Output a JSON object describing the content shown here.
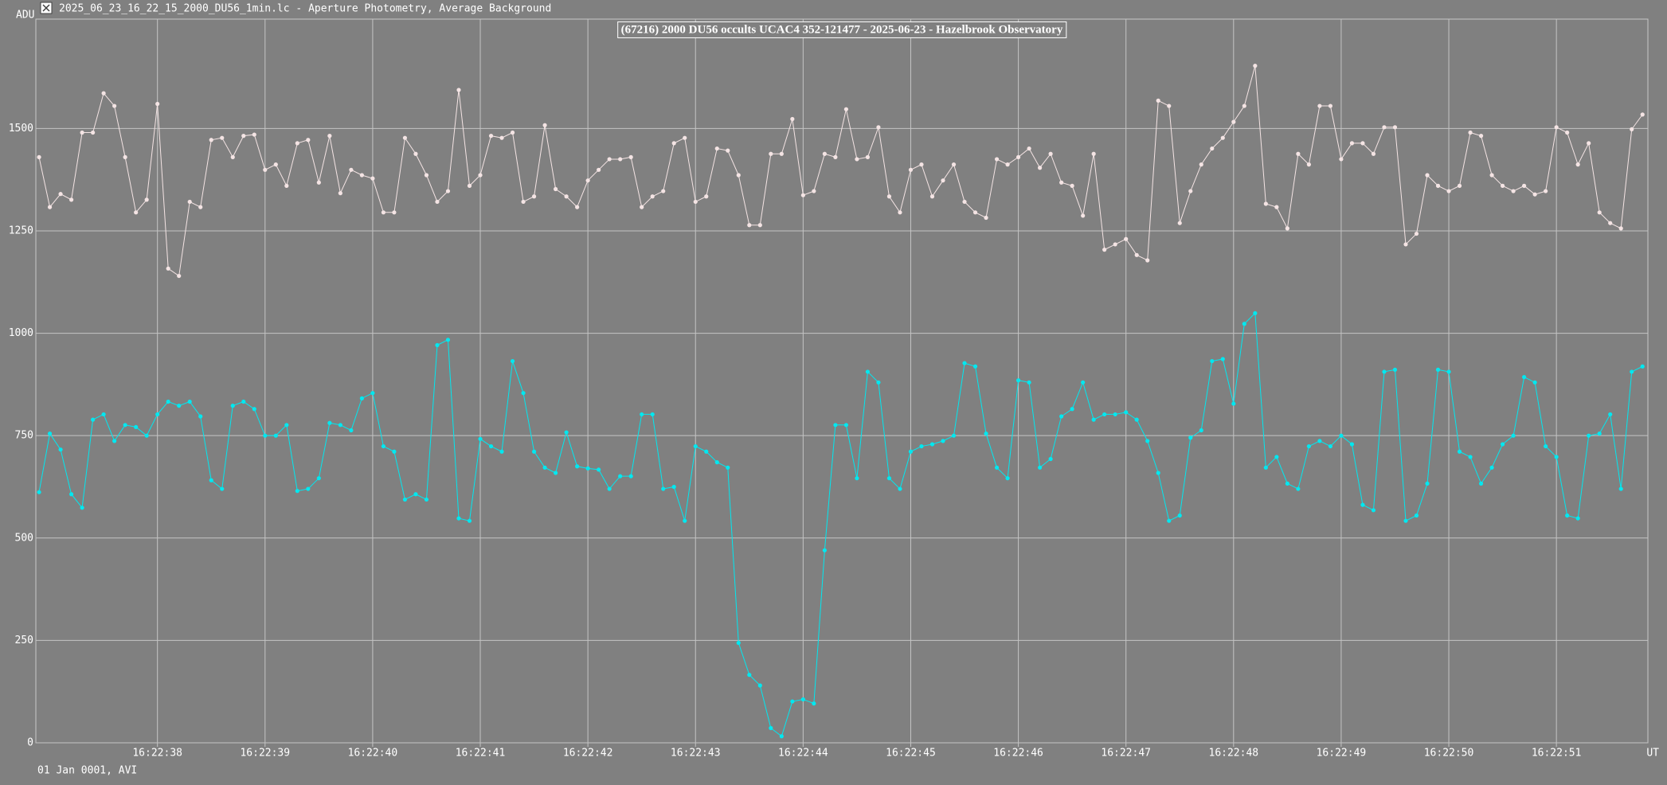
{
  "window_title": "2025_06_23_16_22_15_2000_DU56_1min.lc - Aperture Photometry, Average Background",
  "chart_data": {
    "type": "line",
    "title": "(67216) 2000 DU56 occults UCAC4 352-121477 - 2025-06-23 - Hazelbrook Observatory",
    "y_label": "ADU",
    "x_label": "UT",
    "footer": "01 Jan 0001, AVI",
    "grid": true,
    "xlim": [
      36.87,
      51.85
    ],
    "ylim": [
      0,
      1767
    ],
    "yticks": [
      0,
      250,
      500,
      750,
      1000,
      1250,
      1500
    ],
    "xticks": [
      {
        "value": 38,
        "label": "16:22:38"
      },
      {
        "value": 39,
        "label": "16:22:39"
      },
      {
        "value": 40,
        "label": "16:22:40"
      },
      {
        "value": 41,
        "label": "16:22:41"
      },
      {
        "value": 42,
        "label": "16:22:42"
      },
      {
        "value": 43,
        "label": "16:22:43"
      },
      {
        "value": 44,
        "label": "16:22:44"
      },
      {
        "value": 45,
        "label": "16:22:45"
      },
      {
        "value": 46,
        "label": "16:22:46"
      },
      {
        "value": 47,
        "label": "16:22:47"
      },
      {
        "value": 48,
        "label": "16:22:48"
      },
      {
        "value": 49,
        "label": "16:22:49"
      },
      {
        "value": 50,
        "label": "16:22:50"
      },
      {
        "value": 51,
        "label": "16:22:51"
      }
    ],
    "x": [
      36.9,
      37,
      37.1,
      37.2,
      37.3,
      37.4,
      37.5,
      37.6,
      37.7,
      37.8,
      37.9,
      38,
      38.1,
      38.2,
      38.3,
      38.4,
      38.5,
      38.6,
      38.7,
      38.8,
      38.9,
      39,
      39.1,
      39.2,
      39.3,
      39.4,
      39.5,
      39.6,
      39.7,
      39.8,
      39.9,
      40,
      40.1,
      40.2,
      40.3,
      40.4,
      40.5,
      40.6,
      40.7,
      40.8,
      40.9,
      41,
      41.1,
      41.2,
      41.3,
      41.4,
      41.5,
      41.6,
      41.7,
      41.8,
      41.9,
      42,
      42.1,
      42.2,
      42.3,
      42.4,
      42.5,
      42.6,
      42.7,
      42.8,
      42.9,
      43,
      43.1,
      43.2,
      43.3,
      43.4,
      43.5,
      43.6,
      43.7,
      43.8,
      43.9,
      44,
      44.1,
      44.2,
      44.3,
      44.4,
      44.5,
      44.6,
      44.7,
      44.8,
      44.9,
      45,
      45.1,
      45.2,
      45.3,
      45.4,
      45.5,
      45.6,
      45.7,
      45.8,
      45.9,
      46,
      46.1,
      46.2,
      46.3,
      46.4,
      46.5,
      46.6,
      46.7,
      46.8,
      46.9,
      47,
      47.1,
      47.2,
      47.3,
      47.4,
      47.5,
      47.6,
      47.7,
      47.8,
      47.9,
      48,
      48.1,
      48.2,
      48.3,
      48.4,
      48.5,
      48.6,
      48.7,
      48.8,
      48.9,
      49,
      49.1,
      49.2,
      49.3,
      49.4,
      49.5,
      49.6,
      49.7,
      49.8,
      49.9,
      50,
      50.1,
      50.2,
      50.3,
      50.4,
      50.5,
      50.6,
      50.7,
      50.8,
      50.9,
      51,
      51.1,
      51.2,
      51.3,
      51.4,
      51.5,
      51.6,
      51.7,
      51.8
    ],
    "series": [
      {
        "color": "#f4e4e4",
        "values": [
          1430,
          1308,
          1340,
          1326,
          1490,
          1490,
          1586,
          1555,
          1430,
          1295,
          1326,
          1560,
          1158,
          1140,
          1321,
          1308,
          1472,
          1477,
          1430,
          1482,
          1485,
          1399,
          1412,
          1360,
          1464,
          1472,
          1368,
          1482,
          1342,
          1399,
          1386,
          1378,
          1295,
          1295,
          1477,
          1438,
          1386,
          1321,
          1347,
          1594,
          1360,
          1386,
          1482,
          1477,
          1490,
          1321,
          1334,
          1508,
          1352,
          1334,
          1308,
          1373,
          1399,
          1425,
          1425,
          1430,
          1308,
          1334,
          1347,
          1464,
          1477,
          1321,
          1334,
          1451,
          1446,
          1386,
          1264,
          1264,
          1438,
          1438,
          1523,
          1337,
          1347,
          1438,
          1430,
          1547,
          1425,
          1430,
          1503,
          1334,
          1295,
          1399,
          1412,
          1334,
          1373,
          1412,
          1321,
          1295,
          1282,
          1425,
          1412,
          1430,
          1451,
          1404,
          1438,
          1368,
          1360,
          1287,
          1438,
          1204,
          1217,
          1230,
          1191,
          1178,
          1568,
          1555,
          1269,
          1347,
          1412,
          1451,
          1477,
          1516,
          1555,
          1653,
          1316,
          1308,
          1256,
          1438,
          1412,
          1555,
          1555,
          1425,
          1464,
          1464,
          1438,
          1503,
          1503,
          1217,
          1243,
          1386,
          1360,
          1347,
          1360,
          1490,
          1482,
          1386,
          1360,
          1347,
          1360,
          1339,
          1347,
          1503,
          1490,
          1412,
          1464,
          1295,
          1269,
          1256,
          1498,
          1534
        ]
      },
      {
        "color": "#00e8f0",
        "values": [
          612,
          755,
          716,
          607,
          574,
          789,
          802,
          737,
          776,
          771,
          750,
          802,
          833,
          823,
          833,
          797,
          641,
          620,
          823,
          833,
          815,
          750,
          750,
          776,
          615,
          620,
          646,
          781,
          776,
          763,
          841,
          854,
          724,
          711,
          594,
          607,
          594,
          971,
          984,
          548,
          542,
          742,
          724,
          711,
          932,
          854,
          711,
          672,
          659,
          758,
          675,
          670,
          667,
          620,
          651,
          651,
          802,
          802,
          620,
          625,
          542,
          724,
          711,
          685,
          672,
          244,
          166,
          140,
          36,
          16,
          101,
          106,
          96,
          470,
          776,
          776,
          646,
          906,
          880,
          646,
          620,
          711,
          724,
          729,
          737,
          750,
          927,
          919,
          755,
          672,
          646,
          885,
          880,
          672,
          693,
          797,
          815,
          880,
          789,
          802,
          802,
          807,
          789,
          737,
          659,
          542,
          555,
          745,
          763,
          932,
          937,
          828,
          1023,
          1049,
          672,
          698,
          633,
          620,
          724,
          737,
          724,
          750,
          729,
          581,
          568,
          906,
          911,
          542,
          555,
          633,
          911,
          906,
          711,
          698,
          633,
          672,
          729,
          750,
          893,
          880,
          724,
          698,
          555,
          548,
          750,
          755,
          802,
          620,
          906,
          919
        ]
      }
    ]
  }
}
